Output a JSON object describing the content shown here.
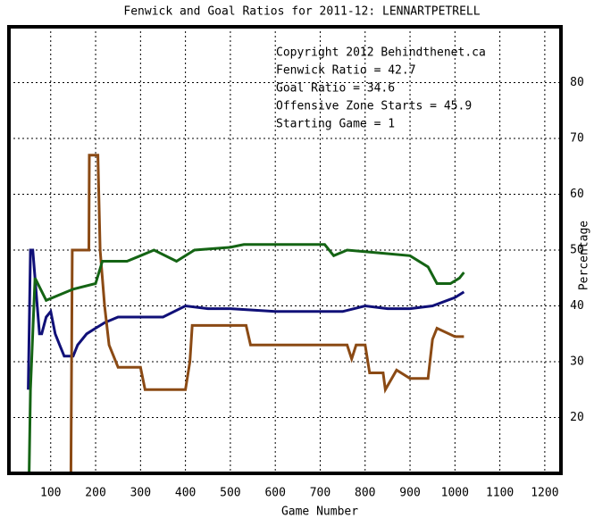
{
  "chart_data": {
    "type": "line",
    "title": "Fenwick and Goal Ratios for 2011-12: LENNARTPETRELL",
    "x_label": "Game Number",
    "y_label": "Percentage",
    "annotations": [
      "Copyright 2012 Behindthenet.ca",
      "Starting Game = 1"
    ],
    "xlim": [
      7,
      1236
    ],
    "xticks": [
      100,
      200,
      300,
      400,
      500,
      600,
      700,
      800,
      900,
      1000,
      1100,
      1200
    ],
    "ylim": [
      10,
      90
    ],
    "yticks": [
      20,
      30,
      40,
      50,
      60,
      70,
      80
    ],
    "grid": true,
    "series": [
      {
        "name": "Fenwick Ratio = 42.7",
        "color": "#101078",
        "x": [
          50,
          55,
          60,
          65,
          70,
          75,
          80,
          90,
          100,
          110,
          120,
          130,
          140,
          150,
          160,
          170,
          180,
          200,
          220,
          250,
          300,
          350,
          400,
          450,
          500,
          600,
          700,
          750,
          800,
          850,
          900,
          950,
          1000,
          1020
        ],
        "values": [
          25,
          50,
          50,
          45,
          40,
          35,
          35,
          38,
          39,
          35,
          33,
          31,
          31,
          31,
          33,
          34,
          35,
          36,
          37,
          38,
          38,
          38,
          40,
          39.5,
          39.5,
          39,
          39,
          39,
          40,
          39.5,
          39.5,
          40,
          41.5,
          42.5
        ]
      },
      {
        "name": "Goal Ratio = 34.6",
        "color": "#8b4a14",
        "x": [
          145,
          148,
          185,
          186,
          205,
          210,
          220,
          230,
          250,
          300,
          310,
          400,
          410,
          415,
          535,
          545,
          760,
          770,
          780,
          800,
          810,
          840,
          845,
          870,
          900,
          940,
          950,
          960,
          1000,
          1020
        ],
        "values": [
          10,
          50,
          50,
          67,
          67,
          50,
          40,
          33,
          29,
          29,
          25,
          25,
          30,
          36.5,
          36.5,
          33,
          33,
          30.5,
          33,
          33,
          28,
          28,
          25,
          28.5,
          27,
          27,
          34,
          36,
          34.5,
          34.5
        ]
      },
      {
        "name": "Offensive Zone Starts = 45.9",
        "color": "#146414",
        "x": [
          52,
          55,
          65,
          90,
          150,
          200,
          215,
          270,
          300,
          330,
          380,
          420,
          500,
          530,
          710,
          730,
          760,
          830,
          900,
          940,
          960,
          990,
          1010,
          1020
        ],
        "values": [
          10,
          25,
          45,
          41,
          43,
          44,
          48,
          48,
          49,
          50,
          48,
          50,
          50.5,
          51,
          51,
          49,
          50,
          49.5,
          49,
          47,
          44,
          44,
          45,
          46
        ]
      }
    ]
  }
}
